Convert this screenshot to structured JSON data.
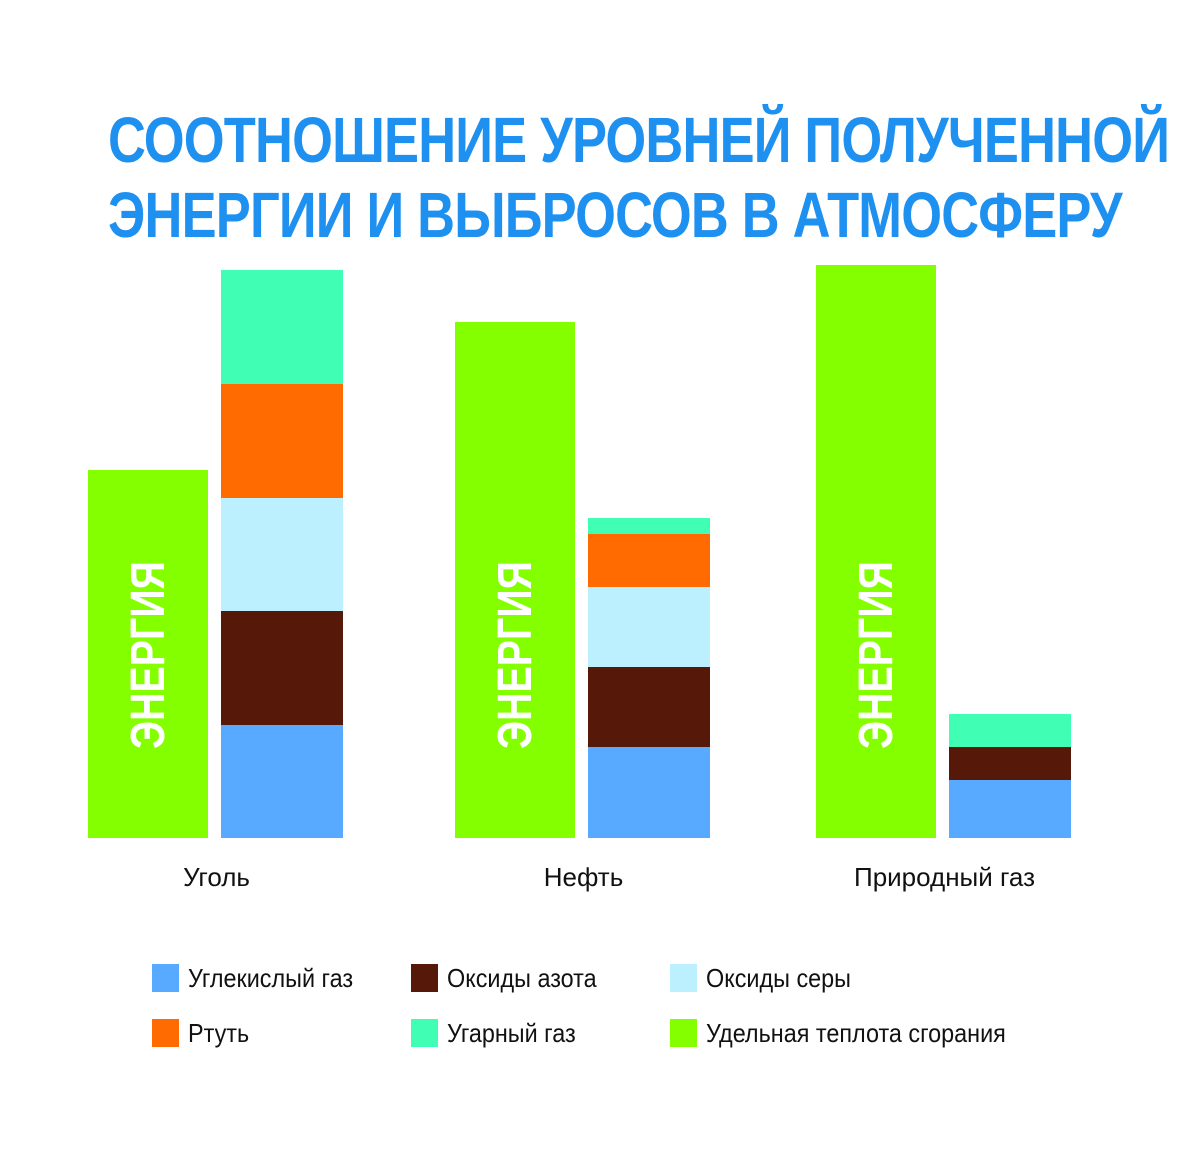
{
  "title_lines": [
    "СООТНОШЕНИЕ УРОВНЕЙ ПОЛУЧЕННОЙ",
    "ЭНЕРГИИ И ВЫБРОСОВ В АТМОСФЕРУ"
  ],
  "chart_data": {
    "type": "bar",
    "title": "СООТНОШЕНИЕ УРОВНЕЙ ПОЛУЧЕННОЙ ЭНЕРГИИ И ВЫБРОСОВ В АТМОСФЕРУ",
    "xlabel": "",
    "ylabel": "",
    "grid": false,
    "legend_position": "bottom",
    "categories": [
      "Уголь",
      "Нефть",
      "Природный газ"
    ],
    "energy_bar_label": "ЭНЕРГИЯ",
    "energy": {
      "name": "Удельная теплота сгорания",
      "color": "#84ff00",
      "values": [
        368,
        516,
        573
      ]
    },
    "emissions_series": [
      {
        "name": "Углекислый газ",
        "color": "#57aaff",
        "values": [
          113,
          91,
          58
        ]
      },
      {
        "name": "Оксиды азота",
        "color": "#561808",
        "values": [
          114,
          80,
          33
        ]
      },
      {
        "name": "Оксиды серы",
        "color": "#bdf0ff",
        "values": [
          113,
          80,
          0
        ]
      },
      {
        "name": "Ртуть",
        "color": "#ff6b00",
        "values": [
          114,
          53,
          0
        ]
      },
      {
        "name": "Угарный газ",
        "color": "#40ffb4",
        "values": [
          114,
          16,
          33
        ]
      }
    ],
    "ylim": [
      0,
      580
    ]
  },
  "legend": [
    {
      "label": "Углекислый газ",
      "color": "#57aaff"
    },
    {
      "label": "Оксиды азота",
      "color": "#561808"
    },
    {
      "label": "Оксиды серы",
      "color": "#bdf0ff"
    },
    {
      "label": "Ртуть",
      "color": "#ff6b00"
    },
    {
      "label": "Угарный газ",
      "color": "#40ffb4"
    },
    {
      "label": "Удельная теплота сгорания",
      "color": "#84ff00"
    }
  ]
}
